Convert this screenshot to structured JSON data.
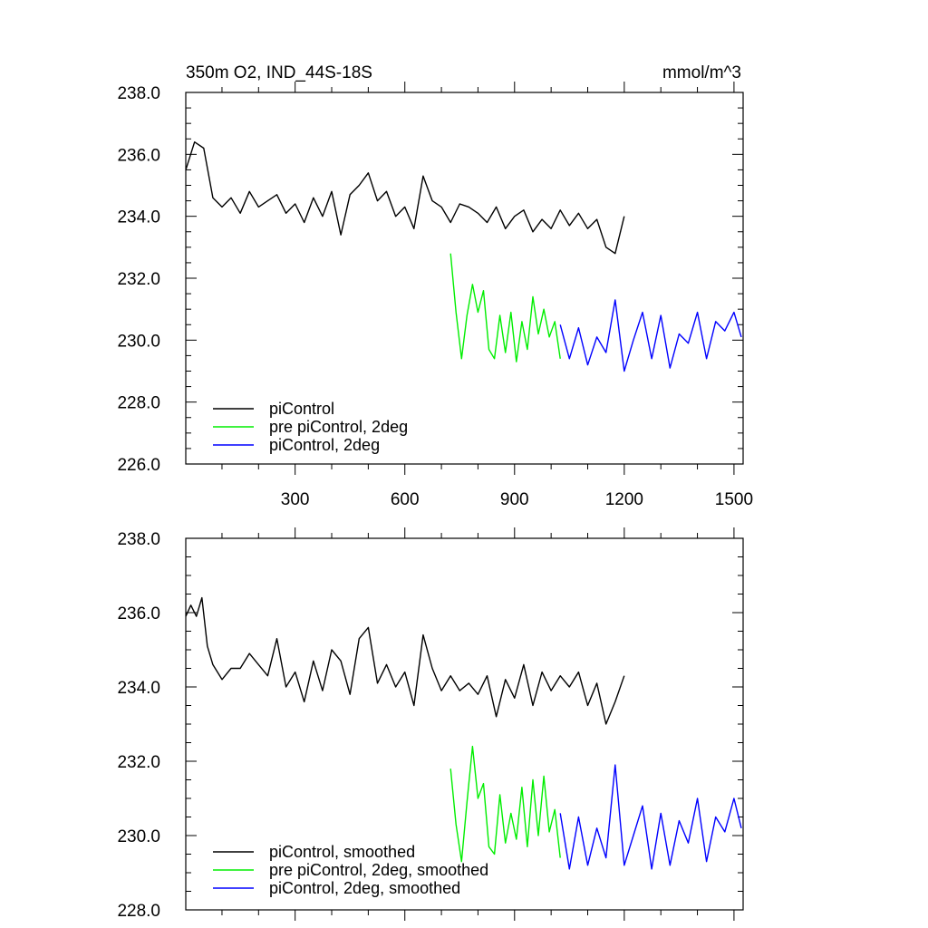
{
  "chart_data": [
    {
      "type": "line",
      "title": "350m O2, IND_44S-18S",
      "units": "mmol/m^3",
      "xlabel": "",
      "ylabel": "",
      "xlim": [
        1,
        1525
      ],
      "ylim": [
        226.0,
        238.0
      ],
      "x_ticks": [
        300,
        600,
        900,
        1200,
        1500
      ],
      "y_ticks": [
        226.0,
        228.0,
        230.0,
        232.0,
        234.0,
        236.0,
        238.0
      ],
      "y_tick_labels": [
        "226.0",
        "228.0",
        "230.0",
        "232.0",
        "234.0",
        "236.0",
        "238.0"
      ],
      "x_tick_labels": [
        "300",
        "600",
        "900",
        "1200",
        "1500"
      ],
      "legend_position": "bottom-left",
      "series": [
        {
          "name": "piControl",
          "color": "#000000",
          "x": [
            1,
            25,
            50,
            75,
            100,
            125,
            150,
            175,
            200,
            225,
            250,
            275,
            300,
            325,
            350,
            375,
            400,
            425,
            450,
            475,
            500,
            525,
            550,
            575,
            600,
            625,
            650,
            675,
            700,
            725,
            750,
            775,
            800,
            825,
            850,
            875,
            900,
            925,
            950,
            975,
            1000,
            1025,
            1050,
            1075,
            1100,
            1125,
            1150,
            1175,
            1200
          ],
          "values": [
            235.5,
            236.4,
            236.2,
            234.6,
            234.3,
            234.6,
            234.1,
            234.8,
            234.3,
            234.5,
            234.7,
            234.1,
            234.4,
            233.8,
            234.6,
            234.0,
            234.8,
            233.4,
            234.7,
            235.0,
            235.4,
            234.5,
            234.8,
            234.0,
            234.3,
            233.6,
            235.3,
            234.5,
            234.3,
            233.8,
            234.4,
            234.3,
            234.1,
            233.8,
            234.3,
            233.6,
            234.0,
            234.2,
            233.5,
            233.9,
            233.6,
            234.2,
            233.7,
            234.1,
            233.6,
            233.9,
            233.0,
            232.8,
            234.0
          ]
        },
        {
          "name": "pre piControl, 2deg",
          "color": "#00ee00",
          "x": [
            725,
            740,
            755,
            770,
            785,
            800,
            815,
            830,
            845,
            860,
            875,
            890,
            905,
            920,
            935,
            950,
            965,
            980,
            995,
            1010,
            1025
          ],
          "values": [
            232.8,
            230.9,
            229.4,
            230.8,
            231.8,
            230.9,
            231.6,
            229.7,
            229.4,
            230.8,
            229.6,
            230.9,
            229.3,
            230.6,
            229.7,
            231.4,
            230.2,
            231.0,
            230.1,
            230.6,
            229.4
          ]
        },
        {
          "name": "piControl, 2deg",
          "color": "#0000ff",
          "x": [
            1025,
            1050,
            1075,
            1100,
            1125,
            1150,
            1175,
            1200,
            1225,
            1250,
            1275,
            1300,
            1325,
            1350,
            1375,
            1400,
            1425,
            1450,
            1475,
            1500,
            1520
          ],
          "values": [
            230.5,
            229.4,
            230.4,
            229.2,
            230.1,
            229.6,
            231.3,
            229.0,
            230.0,
            230.9,
            229.4,
            230.8,
            229.1,
            230.2,
            229.9,
            230.9,
            229.4,
            230.6,
            230.3,
            230.9,
            230.1
          ]
        }
      ]
    },
    {
      "type": "line",
      "title": "",
      "xlabel": "",
      "ylabel": "",
      "xlim": [
        1,
        1525
      ],
      "ylim": [
        228.0,
        238.0
      ],
      "x_ticks": [
        300,
        600,
        900,
        1200,
        1500
      ],
      "y_ticks": [
        228.0,
        230.0,
        232.0,
        234.0,
        236.0,
        238.0
      ],
      "y_tick_labels": [
        "228.0",
        "230.0",
        "232.0",
        "234.0",
        "236.0",
        "238.0"
      ],
      "legend_position": "bottom-left",
      "series": [
        {
          "name": "piControl, smoothed",
          "color": "#000000",
          "x": [
            1,
            15,
            30,
            45,
            60,
            75,
            100,
            125,
            150,
            175,
            200,
            225,
            250,
            275,
            300,
            325,
            350,
            375,
            400,
            425,
            450,
            475,
            500,
            525,
            550,
            575,
            600,
            625,
            650,
            675,
            700,
            725,
            750,
            775,
            800,
            825,
            850,
            875,
            900,
            925,
            950,
            975,
            1000,
            1025,
            1050,
            1075,
            1100,
            1125,
            1150,
            1175,
            1200
          ],
          "values": [
            235.9,
            236.2,
            235.9,
            236.4,
            235.1,
            234.6,
            234.2,
            234.5,
            234.5,
            234.9,
            234.6,
            234.3,
            235.3,
            234.0,
            234.4,
            233.6,
            234.7,
            233.9,
            235.0,
            234.7,
            233.8,
            235.3,
            235.6,
            234.1,
            234.6,
            234.0,
            234.4,
            233.5,
            235.4,
            234.5,
            233.9,
            234.3,
            233.9,
            234.1,
            233.8,
            234.3,
            233.2,
            234.2,
            233.7,
            234.6,
            233.5,
            234.4,
            233.9,
            234.3,
            234.0,
            234.4,
            233.5,
            234.1,
            233.0,
            233.6,
            234.3
          ]
        },
        {
          "name": "pre piControl, 2deg, smoothed",
          "color": "#00ee00",
          "x": [
            725,
            740,
            755,
            770,
            785,
            800,
            815,
            830,
            845,
            860,
            875,
            890,
            905,
            920,
            935,
            950,
            965,
            980,
            995,
            1010,
            1025
          ],
          "values": [
            231.8,
            230.3,
            229.3,
            230.9,
            232.4,
            231.0,
            231.4,
            229.7,
            229.5,
            231.1,
            229.8,
            230.6,
            229.9,
            231.3,
            229.7,
            231.5,
            230.0,
            231.6,
            230.1,
            230.7,
            229.4
          ]
        },
        {
          "name": "piControl, 2deg, smoothed",
          "color": "#0000ff",
          "x": [
            1025,
            1050,
            1075,
            1100,
            1125,
            1150,
            1175,
            1200,
            1225,
            1250,
            1275,
            1300,
            1325,
            1350,
            1375,
            1400,
            1425,
            1450,
            1475,
            1500,
            1520
          ],
          "values": [
            230.6,
            229.1,
            230.5,
            229.2,
            230.2,
            229.4,
            231.9,
            229.2,
            230.0,
            230.8,
            229.1,
            230.6,
            229.2,
            230.4,
            229.8,
            231.0,
            229.3,
            230.5,
            230.1,
            231.0,
            230.2
          ]
        }
      ]
    }
  ]
}
